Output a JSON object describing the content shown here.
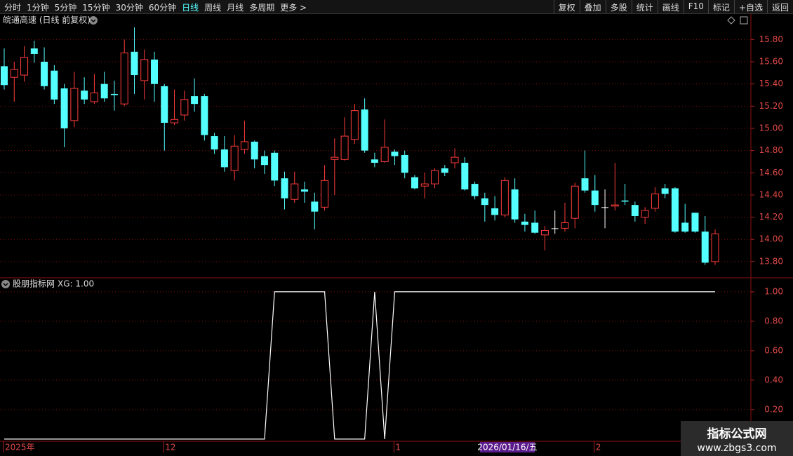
{
  "toolbar": {
    "periods": [
      "分时",
      "1分钟",
      "5分钟",
      "15分钟",
      "30分钟",
      "60分钟",
      "日线",
      "周线",
      "月线",
      "多周期",
      "更多 >"
    ],
    "active": 6,
    "tools": [
      "复权",
      "叠加",
      "多股",
      "统计",
      "画线",
      "F10",
      "标记",
      "+自选",
      "返回"
    ]
  },
  "chart_data": [
    {
      "type": "candlestick",
      "title": "皖通高速 (日线 前复权)",
      "categories": [
        "2025年",
        null,
        null,
        null,
        null,
        null,
        null,
        null,
        null,
        null,
        null,
        null,
        null,
        null,
        null,
        null,
        "12",
        null,
        null,
        null,
        null,
        null,
        null,
        null,
        null,
        null,
        null,
        null,
        null,
        null,
        null,
        null,
        null,
        null,
        null,
        null,
        null,
        null,
        null,
        "1",
        null,
        null,
        null,
        null,
        null,
        null,
        null,
        null,
        null,
        null,
        null,
        null,
        null,
        null,
        null,
        null,
        null,
        null,
        null,
        "2",
        null,
        null,
        null,
        null,
        null,
        null,
        null,
        null,
        null,
        null,
        null,
        null
      ],
      "cursor_label": "2026/01/16/五",
      "open": [
        15.56,
        15.46,
        15.48,
        15.72,
        15.6,
        15.52,
        15.36,
        15.07,
        15.34,
        15.24,
        15.4,
        15.31,
        15.22,
        15.69,
        15.43,
        15.62,
        15.38,
        15.05,
        15.12,
        15.29,
        15.29,
        14.93,
        14.81,
        14.62,
        14.81,
        14.88,
        14.75,
        14.78,
        14.55,
        14.36,
        14.45,
        14.34,
        14.29,
        14.72,
        14.72,
        14.9,
        15.17,
        14.72,
        14.7,
        14.79,
        14.76,
        14.56,
        14.48,
        14.5,
        14.64,
        14.69,
        14.69,
        14.5,
        14.37,
        14.28,
        14.22,
        14.45,
        14.16,
        14.15,
        14.04,
        14.1,
        14.1,
        14.19,
        14.55,
        14.44,
        14.29,
        14.3,
        14.35,
        14.31,
        14.2,
        14.28,
        14.46,
        14.46,
        14.15,
        14.24,
        14.07,
        13.8
      ],
      "high": [
        15.72,
        15.6,
        15.74,
        15.79,
        15.73,
        15.57,
        15.4,
        15.51,
        15.46,
        15.49,
        15.51,
        15.43,
        15.8,
        15.91,
        15.71,
        15.69,
        15.4,
        15.35,
        15.34,
        15.45,
        15.31,
        14.96,
        14.93,
        14.94,
        15.07,
        14.89,
        14.8,
        14.8,
        14.61,
        14.61,
        14.52,
        14.42,
        14.67,
        14.91,
        15.1,
        15.22,
        15.27,
        14.78,
        15.08,
        14.81,
        14.8,
        14.58,
        14.6,
        14.64,
        14.67,
        14.82,
        14.74,
        14.52,
        14.42,
        14.39,
        14.56,
        14.55,
        14.23,
        14.26,
        14.12,
        14.26,
        14.33,
        14.51,
        14.8,
        14.58,
        14.45,
        14.69,
        14.5,
        14.34,
        14.29,
        14.47,
        14.5,
        14.47,
        14.32,
        14.24,
        14.21,
        14.09
      ],
      "low": [
        15.35,
        15.24,
        15.42,
        15.59,
        15.35,
        15.22,
        14.83,
        15.01,
        15.22,
        15.22,
        15.24,
        15.16,
        15.2,
        15.31,
        15.26,
        15.24,
        14.8,
        15.03,
        15.07,
        15.15,
        14.89,
        14.77,
        14.61,
        14.53,
        14.77,
        14.64,
        14.59,
        14.48,
        14.27,
        14.33,
        14.33,
        14.09,
        14.26,
        14.4,
        14.71,
        14.86,
        14.78,
        14.65,
        14.69,
        14.67,
        14.55,
        14.45,
        14.37,
        14.46,
        14.57,
        14.64,
        14.44,
        14.36,
        14.16,
        14.17,
        14.2,
        14.15,
        14.07,
        14.05,
        13.9,
        14.05,
        14.07,
        14.1,
        14.42,
        14.25,
        14.1,
        14.26,
        14.31,
        14.16,
        14.14,
        14.25,
        14.37,
        14.06,
        14.06,
        14.06,
        13.77,
        13.77
      ],
      "close": [
        15.39,
        15.53,
        15.64,
        15.67,
        15.38,
        15.26,
        15.0,
        15.36,
        15.26,
        15.32,
        15.27,
        15.3,
        15.68,
        15.48,
        15.62,
        15.4,
        15.05,
        15.08,
        15.26,
        15.22,
        14.94,
        14.81,
        14.65,
        14.84,
        14.88,
        14.72,
        14.67,
        14.53,
        14.37,
        14.5,
        14.43,
        14.25,
        14.53,
        14.74,
        14.93,
        15.16,
        14.8,
        14.69,
        14.83,
        14.75,
        14.6,
        14.46,
        14.5,
        14.62,
        14.6,
        14.74,
        14.45,
        14.39,
        14.31,
        14.22,
        14.53,
        14.18,
        14.13,
        14.06,
        14.08,
        14.1,
        14.15,
        14.48,
        14.44,
        14.31,
        14.29,
        14.31,
        14.34,
        14.21,
        14.26,
        14.41,
        14.41,
        14.07,
        14.07,
        14.07,
        13.79,
        14.05
      ],
      "up_color": "#ff3c3c",
      "down_color": "#54ffff",
      "flat_color": "#ffffff",
      "ylim": [
        13.66,
        16.03
      ],
      "yticks": [
        {
          "value": 13.8,
          "label": "13.80"
        },
        {
          "value": 14.0,
          "label": "14.00"
        },
        {
          "value": 14.2,
          "label": "14.20"
        },
        {
          "value": 14.4,
          "label": "14.40"
        },
        {
          "value": 14.6,
          "label": "14.60"
        },
        {
          "value": 14.8,
          "label": "14.80"
        },
        {
          "value": 15.0,
          "label": "15.00"
        },
        {
          "value": 15.2,
          "label": "15.20"
        },
        {
          "value": 15.4,
          "label": "15.40"
        },
        {
          "value": 15.6,
          "label": "15.60"
        },
        {
          "value": 15.8,
          "label": "15.80"
        }
      ],
      "grid": true
    },
    {
      "type": "line",
      "title": "股朋指标网",
      "legend": "XG: 1.00",
      "series": [
        {
          "color": "#ffffff",
          "values": [
            0,
            0,
            0,
            0,
            0,
            0,
            0,
            0,
            0,
            0,
            0,
            0,
            0,
            0,
            0,
            0,
            0,
            0,
            0,
            0,
            0,
            0,
            0,
            0,
            0,
            0,
            0,
            1,
            1,
            1,
            1,
            1,
            1,
            0,
            0,
            0,
            0,
            1,
            0,
            1,
            1,
            1,
            1,
            1,
            1,
            1,
            1,
            1,
            1,
            1,
            1,
            1,
            1,
            1,
            1,
            1,
            1,
            1,
            1,
            1,
            1,
            1,
            1,
            1,
            1,
            1,
            1,
            1,
            1,
            1,
            1,
            1
          ]
        }
      ],
      "ylim": [
        -0.01,
        1.09
      ],
      "yticks": [
        {
          "value": 0.2,
          "label": "0.20"
        },
        {
          "value": 0.4,
          "label": "0.40"
        },
        {
          "value": 0.6,
          "label": "0.60"
        },
        {
          "value": 0.8,
          "label": "0.80"
        },
        {
          "value": 1.0,
          "label": "1.00"
        }
      ],
      "grid": true
    }
  ],
  "watermark": {
    "title": "指标公式网",
    "url": "www.zbgs3.com"
  }
}
